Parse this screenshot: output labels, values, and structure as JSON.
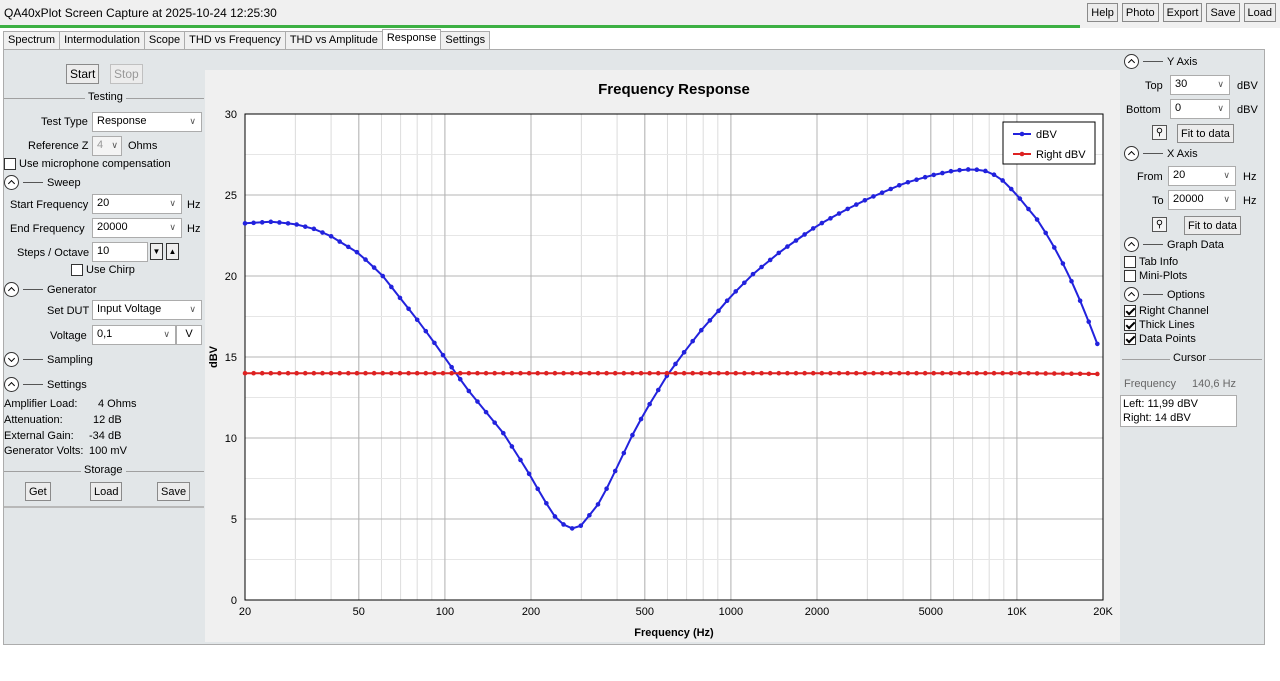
{
  "window": {
    "title": "QA40xPlot Screen Capture at 2025-10-24 12:25:30",
    "progress": 0.844
  },
  "top_buttons": [
    "Help",
    "Photo",
    "Export",
    "Save",
    "Load"
  ],
  "tabs": [
    "Spectrum",
    "Intermodulation",
    "Scope",
    "THD vs Frequency",
    "THD vs Amplitude",
    "Response",
    "Settings"
  ],
  "active_tab": "Response",
  "left": {
    "start_label": "Start",
    "stop_label": "Stop",
    "testing": {
      "title": "Testing",
      "test_type_label": "Test Type",
      "test_type_value": "Response",
      "reference_z_label": "Reference Z",
      "reference_z_value": "4",
      "reference_z_unit": "Ohms",
      "mic_comp_label": "Use microphone compensation"
    },
    "sweep": {
      "title": "Sweep",
      "start_freq_label": "Start Frequency",
      "start_freq_value": "20",
      "end_freq_label": "End Frequency",
      "end_freq_value": "20000",
      "hz": "Hz",
      "steps_label": "Steps / Octave",
      "steps_value": "10",
      "chirp_label": "Use Chirp"
    },
    "generator": {
      "title": "Generator",
      "set_dut_label": "Set DUT",
      "set_dut_value": "Input Voltage",
      "voltage_label": "Voltage",
      "voltage_value": "0,1",
      "voltage_unit": "V"
    },
    "sampling_title": "Sampling",
    "settings": {
      "title": "Settings",
      "rows": [
        {
          "label": "Amplifier Load:",
          "value": "4 Ohms"
        },
        {
          "label": "Attenuation:",
          "value": "12 dB"
        },
        {
          "label": "External Gain:",
          "value": "-34 dB"
        },
        {
          "label": "Generator Volts:",
          "value": "100 mV"
        }
      ]
    },
    "storage": {
      "title": "Storage",
      "get": "Get",
      "load": "Load",
      "save": "Save"
    }
  },
  "right": {
    "y_axis": {
      "title": "Y Axis",
      "top_label": "Top",
      "top_value": "30",
      "bottom_label": "Bottom",
      "bottom_value": "0",
      "unit": "dBV",
      "fit": "Fit to data"
    },
    "x_axis": {
      "title": "X Axis",
      "from_label": "From",
      "from_value": "20",
      "to_label": "To",
      "to_value": "20000",
      "unit": "Hz",
      "fit": "Fit to data"
    },
    "graph_data": {
      "title": "Graph Data",
      "tab_info": "Tab Info",
      "mini_plots": "Mini-Plots"
    },
    "options": {
      "title": "Options",
      "right_channel": "Right Channel",
      "thick_lines": "Thick Lines",
      "data_points": "Data Points"
    },
    "cursor": {
      "title": "Cursor",
      "freq_label": "Frequency",
      "freq_value": "140,6 Hz",
      "left": "Left: 11,99 dBV",
      "right": "Right: 14 dBV"
    }
  },
  "colors": {
    "left_series": "#2222dd",
    "right_series": "#dd2222",
    "progress": "#3cb043"
  },
  "chart_data": {
    "type": "line",
    "title": "Frequency Response",
    "xlabel": "Frequency (Hz)",
    "ylabel": "dBV",
    "x_scale": "log",
    "xlim": [
      20,
      20000
    ],
    "ylim": [
      0,
      30
    ],
    "x_ticks": [
      20,
      50,
      100,
      200,
      500,
      1000,
      2000,
      5000,
      10000,
      20000
    ],
    "x_tick_labels": [
      "20",
      "50",
      "100",
      "200",
      "500",
      "1000",
      "2000",
      "5000",
      "10K",
      "20K"
    ],
    "y_ticks": [
      0,
      5,
      10,
      15,
      20,
      25,
      30
    ],
    "grid": true,
    "legend": "top-right",
    "series": [
      {
        "name": "dBV",
        "color": "#2222dd",
        "points": [
          [
            20,
            23.25
          ],
          [
            25,
            23.35
          ],
          [
            30,
            23.2
          ],
          [
            35,
            22.9
          ],
          [
            40,
            22.45
          ],
          [
            50,
            21.4
          ],
          [
            60,
            20.1
          ],
          [
            70,
            18.6
          ],
          [
            80,
            17.3
          ],
          [
            90,
            16.1
          ],
          [
            100,
            14.95
          ],
          [
            120,
            13.0
          ],
          [
            140,
            11.55
          ],
          [
            160,
            10.3
          ],
          [
            180,
            8.9
          ],
          [
            200,
            7.6
          ],
          [
            220,
            6.3
          ],
          [
            250,
            4.8
          ],
          [
            280,
            4.4
          ],
          [
            300,
            4.6
          ],
          [
            350,
            6.1
          ],
          [
            400,
            8.2
          ],
          [
            450,
            10.1
          ],
          [
            500,
            11.6
          ],
          [
            550,
            12.8
          ],
          [
            600,
            13.9
          ],
          [
            700,
            15.5
          ],
          [
            800,
            16.8
          ],
          [
            900,
            17.8
          ],
          [
            1000,
            18.75
          ],
          [
            1200,
            20.15
          ],
          [
            1500,
            21.55
          ],
          [
            2000,
            23.1
          ],
          [
            2500,
            24.05
          ],
          [
            3000,
            24.75
          ],
          [
            4000,
            25.7
          ],
          [
            5000,
            26.2
          ],
          [
            6000,
            26.5
          ],
          [
            7000,
            26.6
          ],
          [
            8000,
            26.45
          ],
          [
            9000,
            25.85
          ],
          [
            10000,
            25.0
          ],
          [
            12000,
            23.3
          ],
          [
            14000,
            21.3
          ],
          [
            16000,
            19.2
          ],
          [
            18000,
            17.0
          ],
          [
            20000,
            14.9
          ]
        ]
      },
      {
        "name": "Right dBV",
        "color": "#dd2222",
        "points": [
          [
            20,
            14.0
          ],
          [
            100,
            14.0
          ],
          [
            1000,
            14.0
          ],
          [
            10000,
            14.0
          ],
          [
            20000,
            13.95
          ]
        ]
      }
    ]
  }
}
